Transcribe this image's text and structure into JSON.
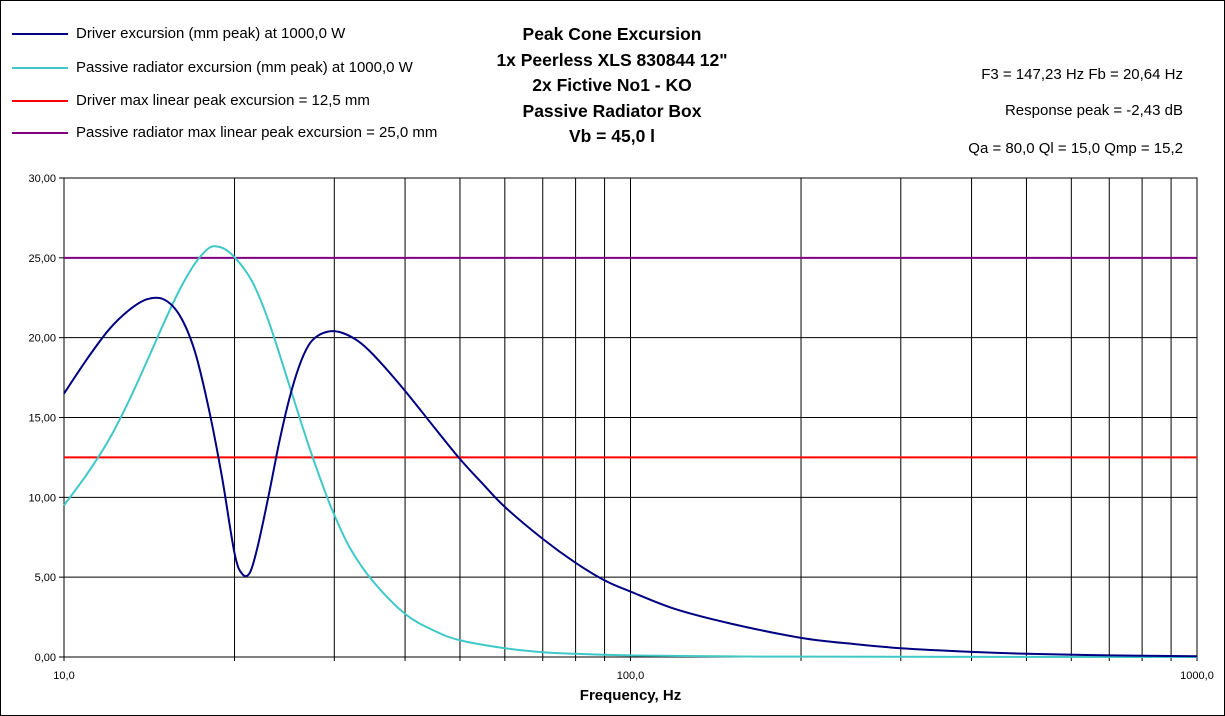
{
  "chart_data": {
    "type": "line",
    "title_lines": [
      "Peak Cone Excursion",
      "1x Peerless XLS 830844 12\"",
      "2x Fictive No1 - KO",
      "Passive Radiator Box",
      "Vb = 45,0 l"
    ],
    "xlabel": "Frequency, Hz",
    "ylabel": "",
    "x_scale": "log",
    "xlim": [
      10,
      1000
    ],
    "ylim": [
      0,
      30
    ],
    "grid": true,
    "legend_position": "top-left",
    "x_tick_labels": [
      "10,0",
      "100,0",
      "1000,0"
    ],
    "y_tick_labels": [
      "0,00",
      "5,00",
      "10,00",
      "15,00",
      "20,00",
      "25,00",
      "30,00"
    ],
    "info_lines": [
      "F3 = 147,23 Hz  Fb = 20,64 Hz",
      "Response peak = -2,43 dB",
      "Qa = 80,0  Ql = 15,0  Qmp = 15,2"
    ],
    "series": [
      {
        "name": "Driver excursion (mm peak) at 1000,0 W",
        "color": "#000080",
        "points": [
          [
            10,
            16.5
          ],
          [
            11,
            18.7
          ],
          [
            12,
            20.5
          ],
          [
            13,
            21.7
          ],
          [
            14,
            22.4
          ],
          [
            15,
            22.4
          ],
          [
            16,
            21.4
          ],
          [
            17,
            19.2
          ],
          [
            18,
            15.6
          ],
          [
            19,
            11.3
          ],
          [
            20,
            6.5
          ],
          [
            20.64,
            5.2
          ],
          [
            21.3,
            5.3
          ],
          [
            22,
            7.0
          ],
          [
            23,
            10.2
          ],
          [
            24,
            13.5
          ],
          [
            25,
            16.2
          ],
          [
            26,
            18.2
          ],
          [
            27,
            19.5
          ],
          [
            28,
            20.1
          ],
          [
            29.5,
            20.4
          ],
          [
            31,
            20.3
          ],
          [
            33,
            19.8
          ],
          [
            35,
            19.0
          ],
          [
            38,
            17.6
          ],
          [
            41,
            16.2
          ],
          [
            45,
            14.4
          ],
          [
            50,
            12.4
          ],
          [
            55,
            10.8
          ],
          [
            60,
            9.4
          ],
          [
            70,
            7.4
          ],
          [
            80,
            5.9
          ],
          [
            90,
            4.8
          ],
          [
            100,
            4.1
          ],
          [
            120,
            3.0
          ],
          [
            150,
            2.1
          ],
          [
            200,
            1.2
          ],
          [
            250,
            0.8
          ],
          [
            300,
            0.55
          ],
          [
            400,
            0.32
          ],
          [
            500,
            0.2
          ],
          [
            700,
            0.1
          ],
          [
            1000,
            0.05
          ]
        ]
      },
      {
        "name": "Passive radiator excursion (mm peak) at 1000,0 W",
        "color": "#40c8c8",
        "points": [
          [
            10,
            9.5
          ],
          [
            11,
            11.5
          ],
          [
            12,
            13.6
          ],
          [
            13,
            16.0
          ],
          [
            14,
            18.5
          ],
          [
            15,
            20.9
          ],
          [
            16,
            23.0
          ],
          [
            17,
            24.6
          ],
          [
            18,
            25.6
          ],
          [
            18.7,
            25.7
          ],
          [
            19.5,
            25.4
          ],
          [
            20.5,
            24.6
          ],
          [
            21.5,
            23.5
          ],
          [
            22.5,
            21.9
          ],
          [
            23.5,
            20.0
          ],
          [
            25,
            17.0
          ],
          [
            27,
            13.3
          ],
          [
            29,
            10.2
          ],
          [
            30,
            8.9
          ],
          [
            32,
            6.8
          ],
          [
            35,
            4.8
          ],
          [
            40,
            2.7
          ],
          [
            45,
            1.65
          ],
          [
            50,
            1.05
          ],
          [
            60,
            0.55
          ],
          [
            70,
            0.3
          ],
          [
            80,
            0.2
          ],
          [
            100,
            0.1
          ],
          [
            150,
            0.04
          ],
          [
            200,
            0.02
          ],
          [
            1000,
            0.0
          ]
        ]
      },
      {
        "name": "Driver max linear peak excursion = 12,5 mm",
        "color": "#ff0000",
        "points": [
          [
            10,
            12.5
          ],
          [
            1000,
            12.5
          ]
        ]
      },
      {
        "name": "Passive radiator max linear peak excursion = 25,0 mm",
        "color": "#800080",
        "points": [
          [
            10,
            25.0
          ],
          [
            1000,
            25.0
          ]
        ]
      }
    ]
  }
}
